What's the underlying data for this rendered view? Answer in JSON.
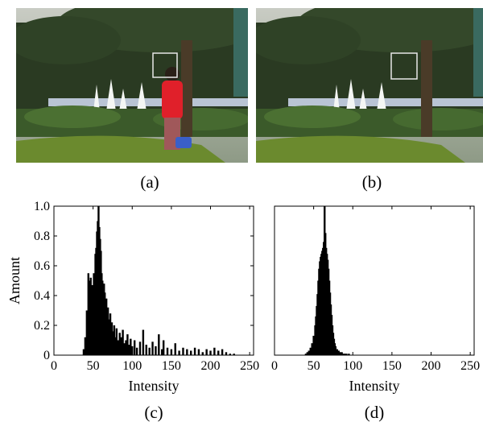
{
  "photos": [
    {
      "caption": "(a)",
      "scene": "fountain-with-pedestrian"
    },
    {
      "caption": "(b)",
      "scene": "fountain-background"
    }
  ],
  "colors": {
    "foliage": "#2a3a22",
    "tree_trunk": "#4a3b28",
    "lawn": "#6b8a2e",
    "fountain": "#f4f6f4",
    "pedestrian_shirt": "#e0202a",
    "roi_box": "#e8e8e8",
    "bars": "#000000"
  },
  "chart_data": [
    {
      "type": "bar",
      "caption": "(c)",
      "xlabel": "Intensity",
      "ylabel": "Amount",
      "xlim": [
        0,
        255
      ],
      "ylim": [
        0,
        1.0
      ],
      "xticks": [
        "0",
        "50",
        "100",
        "150",
        "200",
        "250"
      ],
      "yticks": [
        "0",
        "0.2",
        "0.4",
        "0.6",
        "0.8",
        "1.0"
      ],
      "series": [
        {
          "x": [
            38,
            40,
            42,
            44,
            45,
            46,
            47,
            48,
            49,
            50,
            51,
            52,
            53,
            54,
            55,
            56,
            57,
            58,
            59,
            60,
            61,
            62,
            63,
            64,
            65,
            66,
            67,
            68,
            69,
            70,
            71,
            72,
            73,
            74,
            75,
            76,
            77,
            78,
            80,
            82,
            84,
            86,
            88,
            90,
            92,
            94,
            96,
            98,
            100,
            103,
            106,
            110,
            114,
            118,
            122,
            126,
            130,
            134,
            138,
            140,
            145,
            150,
            155,
            160,
            165,
            170,
            175,
            180,
            185,
            190,
            195,
            200,
            205,
            210,
            215,
            220,
            225,
            230
          ],
          "values": [
            0.04,
            0.12,
            0.3,
            0.55,
            0.5,
            0.45,
            0.52,
            0.4,
            0.47,
            0.42,
            0.55,
            0.5,
            0.68,
            0.72,
            0.83,
            0.9,
            1.0,
            0.86,
            0.78,
            0.7,
            0.55,
            0.5,
            0.45,
            0.48,
            0.42,
            0.3,
            0.38,
            0.26,
            0.32,
            0.24,
            0.2,
            0.28,
            0.18,
            0.22,
            0.16,
            0.14,
            0.2,
            0.12,
            0.18,
            0.1,
            0.15,
            0.12,
            0.17,
            0.08,
            0.1,
            0.14,
            0.07,
            0.11,
            0.06,
            0.1,
            0.05,
            0.09,
            0.17,
            0.07,
            0.05,
            0.09,
            0.06,
            0.14,
            0.04,
            0.1,
            0.05,
            0.04,
            0.08,
            0.03,
            0.05,
            0.04,
            0.03,
            0.05,
            0.04,
            0.02,
            0.04,
            0.03,
            0.05,
            0.03,
            0.04,
            0.02,
            0.01,
            0.01
          ]
        }
      ]
    },
    {
      "type": "bar",
      "caption": "(d)",
      "xlabel": "Intensity",
      "ylabel": "",
      "xlim": [
        0,
        255
      ],
      "ylim": [
        0,
        1.0
      ],
      "xticks": [
        "0",
        "50",
        "100",
        "150",
        "200",
        "250"
      ],
      "yticks": [],
      "series": [
        {
          "x": [
            40,
            42,
            44,
            46,
            48,
            50,
            52,
            53,
            54,
            55,
            56,
            57,
            58,
            59,
            60,
            61,
            62,
            63,
            64,
            65,
            66,
            67,
            68,
            69,
            70,
            71,
            72,
            73,
            74,
            75,
            76,
            77,
            78,
            80,
            82,
            84,
            86,
            88,
            90,
            92,
            95
          ],
          "values": [
            0.01,
            0.02,
            0.03,
            0.05,
            0.08,
            0.13,
            0.2,
            0.26,
            0.33,
            0.41,
            0.5,
            0.58,
            0.63,
            0.66,
            0.68,
            0.7,
            0.72,
            0.76,
            1.0,
            0.82,
            0.72,
            0.68,
            0.64,
            0.58,
            0.5,
            0.42,
            0.34,
            0.27,
            0.2,
            0.15,
            0.11,
            0.08,
            0.06,
            0.04,
            0.03,
            0.02,
            0.02,
            0.01,
            0.01,
            0.01,
            0.01
          ]
        }
      ]
    }
  ]
}
